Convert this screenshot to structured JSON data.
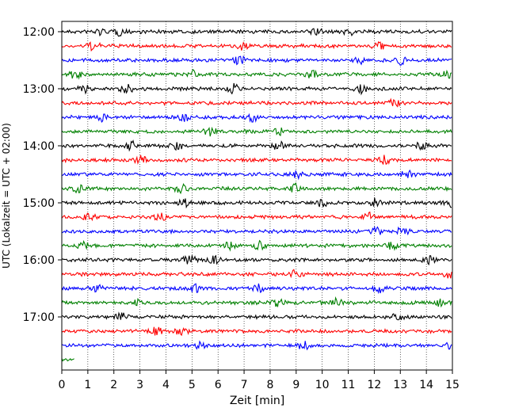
{
  "chart_data": {
    "type": "line",
    "title": "",
    "xlabel": "Zeit  [min]",
    "ylabel": "UTC (Lokalzeit = UTC + 02:00)",
    "xlim": [
      0,
      15
    ],
    "x_ticks": [
      0,
      1,
      2,
      3,
      4,
      5,
      6,
      7,
      8,
      9,
      10,
      11,
      12,
      13,
      14,
      15
    ],
    "x_grid": "dotted vertical lines at each minute",
    "y_ticks": [
      "12:00",
      "13:00",
      "14:00",
      "15:00",
      "16:00",
      "17:00"
    ],
    "trace_interval_min": 15,
    "traces_start": "12:00",
    "trace_count": 24,
    "colors": [
      "#000000",
      "#ff0000",
      "#0000ff",
      "#008000"
    ],
    "series": [
      {
        "start": "12:00",
        "color": "#000000",
        "events_min": [
          1.4,
          2.2,
          9.7,
          11.0
        ],
        "extent_min": [
          0,
          15
        ]
      },
      {
        "start": "12:15",
        "color": "#ff0000",
        "events_min": [
          1.2,
          7.0,
          12.2
        ],
        "extent_min": [
          0,
          15
        ]
      },
      {
        "start": "12:30",
        "color": "#0000ff",
        "events_min": [
          6.8,
          11.4,
          13.0
        ],
        "extent_min": [
          0,
          15
        ]
      },
      {
        "start": "12:45",
        "color": "#008000",
        "events_min": [
          0.5,
          5.1,
          9.6,
          14.9
        ],
        "extent_min": [
          0,
          15
        ]
      },
      {
        "start": "13:00",
        "color": "#000000",
        "events_min": [
          0.9,
          2.5,
          6.6,
          11.5
        ],
        "extent_min": [
          0,
          15
        ]
      },
      {
        "start": "13:15",
        "color": "#ff0000",
        "events_min": [
          12.8
        ],
        "extent_min": [
          0,
          15
        ]
      },
      {
        "start": "13:30",
        "color": "#0000ff",
        "events_min": [
          1.5,
          4.7,
          7.3
        ],
        "extent_min": [
          0,
          15
        ]
      },
      {
        "start": "13:45",
        "color": "#008000",
        "events_min": [
          5.7,
          8.3
        ],
        "extent_min": [
          0,
          15
        ]
      },
      {
        "start": "14:00",
        "color": "#000000",
        "events_min": [
          2.7,
          4.4,
          8.3,
          13.8
        ],
        "extent_min": [
          0,
          15
        ]
      },
      {
        "start": "14:15",
        "color": "#ff0000",
        "events_min": [
          3.0,
          12.4
        ],
        "extent_min": [
          0,
          15
        ]
      },
      {
        "start": "14:30",
        "color": "#0000ff",
        "events_min": [
          9.0,
          13.3
        ],
        "extent_min": [
          0,
          15
        ]
      },
      {
        "start": "14:45",
        "color": "#008000",
        "events_min": [
          0.6,
          4.6,
          9.0
        ],
        "extent_min": [
          0,
          15
        ]
      },
      {
        "start": "15:00",
        "color": "#000000",
        "events_min": [
          4.7,
          10.0,
          12.0,
          14.9
        ],
        "extent_min": [
          0,
          15
        ]
      },
      {
        "start": "15:15",
        "color": "#ff0000",
        "events_min": [
          1.1,
          3.8,
          11.8
        ],
        "extent_min": [
          0,
          15
        ]
      },
      {
        "start": "15:30",
        "color": "#0000ff",
        "events_min": [
          12.1,
          13.1
        ],
        "extent_min": [
          0,
          15
        ]
      },
      {
        "start": "15:45",
        "color": "#008000",
        "events_min": [
          0.8,
          6.5,
          7.6,
          12.7
        ],
        "extent_min": [
          0,
          15
        ]
      },
      {
        "start": "16:00",
        "color": "#000000",
        "events_min": [
          4.9,
          5.8,
          14.1
        ],
        "extent_min": [
          0,
          15
        ]
      },
      {
        "start": "16:15",
        "color": "#ff0000",
        "events_min": [
          9.0,
          14.9
        ],
        "extent_min": [
          0,
          15
        ]
      },
      {
        "start": "16:30",
        "color": "#0000ff",
        "events_min": [
          1.3,
          5.1,
          7.6,
          12.2
        ],
        "extent_min": [
          0,
          15
        ]
      },
      {
        "start": "16:45",
        "color": "#008000",
        "events_min": [
          2.8,
          8.3,
          10.6,
          14.6
        ],
        "extent_min": [
          0,
          15
        ]
      },
      {
        "start": "17:00",
        "color": "#000000",
        "events_min": [
          2.3,
          12.9
        ],
        "extent_min": [
          0,
          15
        ]
      },
      {
        "start": "17:15",
        "color": "#ff0000",
        "events_min": [
          3.6,
          4.6
        ],
        "extent_min": [
          0,
          15
        ]
      },
      {
        "start": "17:30",
        "color": "#0000ff",
        "events_min": [
          5.3,
          9.3,
          14.9
        ],
        "extent_min": [
          0,
          15
        ]
      },
      {
        "start": "17:45",
        "color": "#008000",
        "events_min": [],
        "extent_min": [
          0,
          0.5
        ]
      }
    ]
  }
}
